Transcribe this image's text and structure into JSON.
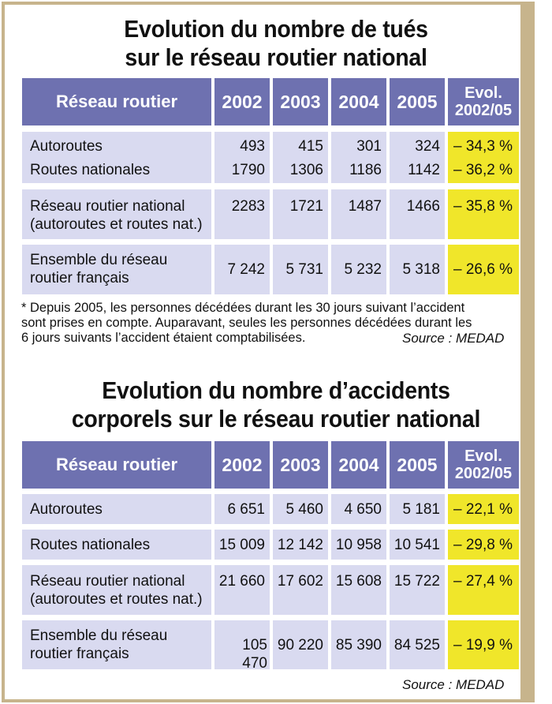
{
  "table1": {
    "title_line1": "Evolution du nombre de tués",
    "title_line2": "sur le réseau routier national",
    "header": {
      "label": "Réseau routier",
      "years": [
        "2002",
        "2003",
        "2004",
        "2005"
      ],
      "evol_line1": "Evol.",
      "evol_line2": "2002/05"
    },
    "rows": [
      {
        "label1": "Autoroutes",
        "label2": "Routes nationales",
        "v1": [
          "493",
          "415",
          "301",
          "324"
        ],
        "v2": [
          "1790",
          "1306",
          "1186",
          "1142"
        ],
        "e1": "– 34,3 %",
        "e2": "– 36,2 %"
      },
      {
        "label1": "Réseau routier national",
        "label2": "(autoroutes et routes nat.)",
        "v1": [
          "2283",
          "1721",
          "1487",
          "1466"
        ],
        "e1": "– 35,8 %"
      },
      {
        "label1": "Ensemble du réseau",
        "label2": "routier français",
        "v1": [
          "7 242",
          "5 731",
          "5 232",
          "5 318"
        ],
        "e1": "– 26,6 %"
      }
    ],
    "note_line1": "* Depuis 2005, les personnes décédées durant les 30 jours suivant l’accident",
    "note_line2": "sont prises en compte. Auparavant, seules les personnes décédées durant les",
    "note_line3": "6 jours suivants l’accident étaient comptabilisées.",
    "source": "Source : MEDAD"
  },
  "table2": {
    "title_line1": "Evolution du nombre d’accidents",
    "title_line2": "corporels sur le réseau routier national",
    "header": {
      "label": "Réseau routier",
      "years": [
        "2002",
        "2003",
        "2004",
        "2005"
      ],
      "evol_line1": "Evol.",
      "evol_line2": "2002/05"
    },
    "rows": [
      {
        "label1": "Autoroutes",
        "v": [
          "6 651",
          "5 460",
          "4 650",
          "5 181"
        ],
        "e": "– 22,1 %"
      },
      {
        "label1": "Routes nationales",
        "v": [
          "15 009",
          "12 142",
          "10 958",
          "10 541"
        ],
        "e": "– 29,8 %"
      },
      {
        "label1": "Réseau routier national",
        "label2": "(autoroutes et routes nat.)",
        "v": [
          "21 660",
          "17 602",
          "15 608",
          "15 722"
        ],
        "e": "– 27,4 %"
      },
      {
        "label1": "Ensemble du réseau",
        "label2": "routier français",
        "v": [
          "105 470",
          "90 220",
          "85 390",
          "84 525"
        ],
        "e": "– 19,9 %"
      }
    ],
    "source": "Source : MEDAD"
  }
}
